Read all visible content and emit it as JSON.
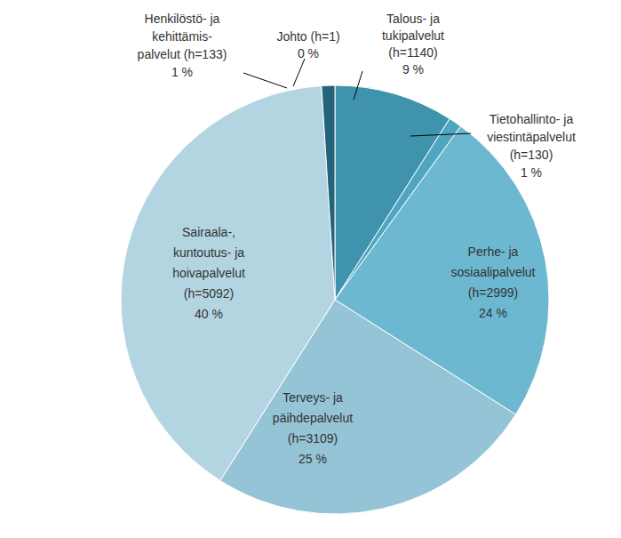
{
  "chart_data": {
    "type": "pie",
    "categories": [
      "Johto (h=1)",
      "Talous- ja tukipalvelut (h=1140)",
      "Tietohallinto- ja viestintäpalvelut (h=130)",
      "Perhe- ja sosiaalipalvelut (h=2999)",
      "Terveys- ja päihdepalvelut (h=3109)",
      "Sairaala-, kuntoutus- ja hoivapalvelut (h=5092)",
      "Henkilöstö- ja kehittämis- palvelut (h=133)"
    ],
    "values": [
      0,
      9,
      1,
      24,
      25,
      40,
      1
    ],
    "value_labels": [
      "0 %",
      "9 %",
      "1 %",
      "24 %",
      "25 %",
      "40 %",
      "1 %"
    ],
    "colors": [
      "#2b6f88",
      "#3f93ad",
      "#4ea6c1",
      "#6cb8d0",
      "#94c4d6",
      "#b3d5e2",
      "#23637c"
    ],
    "data_labels": true
  }
}
